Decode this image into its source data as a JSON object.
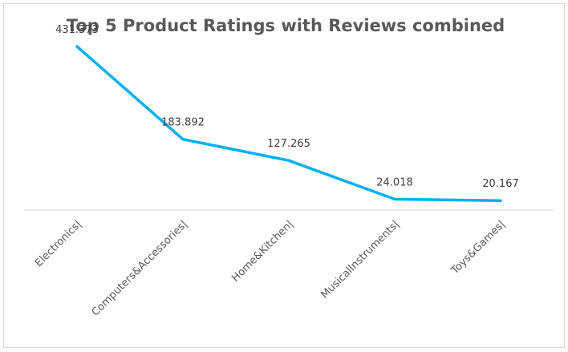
{
  "chart_data": {
    "type": "line",
    "title": "Top 5 Product Ratings with Reviews combined",
    "xlabel": "",
    "ylabel": "",
    "categories": [
      "Electronics|",
      "Computers&Accessories|",
      "Home&Kitchen|",
      "MusicalInstruments|",
      "Toys&Games|"
    ],
    "series": [
      {
        "values": [
          431.373,
          183.892,
          127.265,
          24.018,
          20.167
        ],
        "data_labels": [
          "431.373",
          "183.892",
          "127.265",
          "24.018",
          "20.167"
        ],
        "color": "#00b0f0"
      }
    ],
    "ylim": [
      -5,
      440
    ],
    "y_axis_visible": false,
    "grid": false,
    "legend": "none",
    "axis_color": "#d9d9d9"
  }
}
